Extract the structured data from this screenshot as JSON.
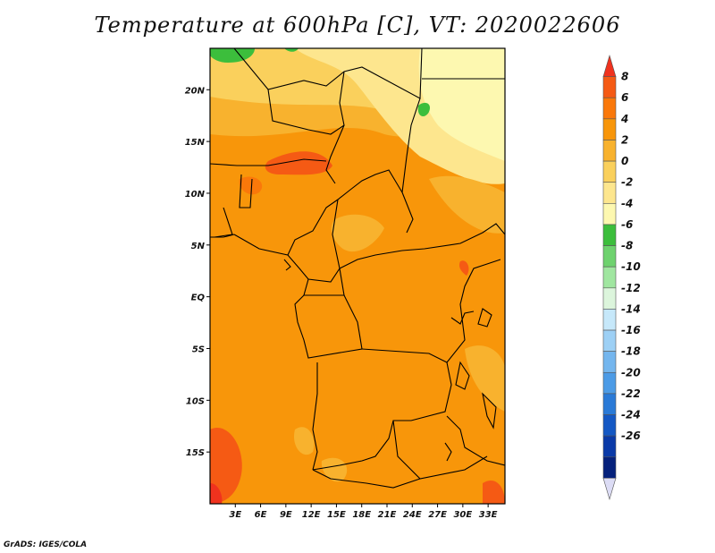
{
  "title": "Temperature at 600hPa [C], VT: 2020022606",
  "footer": "GrADS: IGES/COLA",
  "map": {
    "lon_range": [
      0,
      35
    ],
    "lat_range": [
      -20,
      24
    ],
    "x_ticks": [
      {
        "lon": 3,
        "label": "3E"
      },
      {
        "lon": 6,
        "label": "6E"
      },
      {
        "lon": 9,
        "label": "9E"
      },
      {
        "lon": 12,
        "label": "12E"
      },
      {
        "lon": 15,
        "label": "15E"
      },
      {
        "lon": 18,
        "label": "18E"
      },
      {
        "lon": 21,
        "label": "21E"
      },
      {
        "lon": 24,
        "label": "24E"
      },
      {
        "lon": 27,
        "label": "27E"
      },
      {
        "lon": 30,
        "label": "30E"
      },
      {
        "lon": 33,
        "label": "33E"
      }
    ],
    "y_ticks": [
      {
        "lat": 20,
        "label": "20N"
      },
      {
        "lat": 15,
        "label": "15N"
      },
      {
        "lat": 10,
        "label": "10N"
      },
      {
        "lat": 5,
        "label": "5N"
      },
      {
        "lat": 0,
        "label": "EQ"
      },
      {
        "lat": -5,
        "label": "5S"
      },
      {
        "lat": -10,
        "label": "10S"
      },
      {
        "lat": -15,
        "label": "15S"
      }
    ]
  },
  "colorbar": {
    "labels": [
      "8",
      "6",
      "4",
      "2",
      "0",
      "-2",
      "-4",
      "-6",
      "-8",
      "-10",
      "-12",
      "-14",
      "-16",
      "-18",
      "-20",
      "-22",
      "-24",
      "-26"
    ],
    "colors": [
      "#f0321e",
      "#f55a14",
      "#fa780a",
      "#f8960a",
      "#f8b22e",
      "#fad05c",
      "#fde68e",
      "#fdf8b0",
      "#3cbe3c",
      "#6ed26e",
      "#a0e6a0",
      "#dcf5dc",
      "#c6e8fa",
      "#9dd0f5",
      "#74b6ee",
      "#4c9be6",
      "#2a7ad7",
      "#1458c4",
      "#0a3aa8",
      "#05217c",
      "#dcdcf5"
    ]
  }
}
